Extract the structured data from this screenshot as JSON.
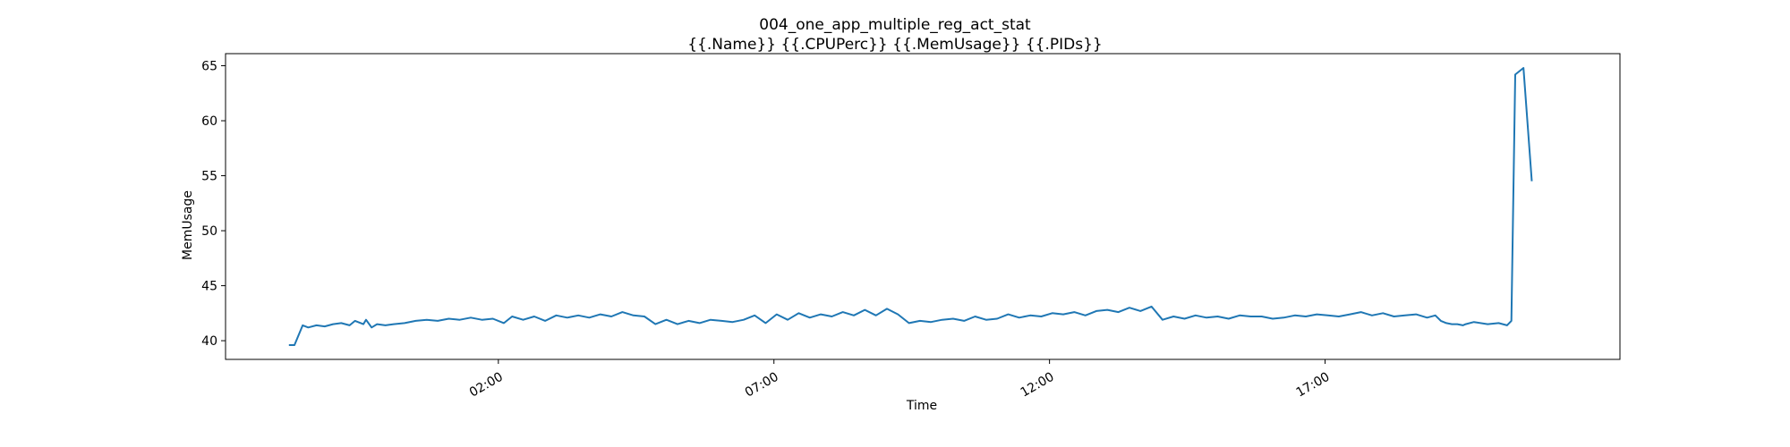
{
  "chart_data": {
    "type": "line",
    "title": "004_one_app_multiple_reg_act_stat",
    "subtitle": "{{.Name}} {{.CPUPerc}} {{.MemUsage}}  {{.PIDs}}",
    "xlabel": "Time",
    "ylabel": "MemUsage",
    "x_unit": "hour of day",
    "xlim": [
      -2.95,
      22.35
    ],
    "ylim": [
      38.3,
      66.1
    ],
    "x_ticks": [
      2,
      7,
      12,
      17
    ],
    "x_tick_labels": [
      "02:00",
      "07:00",
      "12:00",
      "17:00"
    ],
    "y_ticks": [
      40,
      45,
      50,
      55,
      60,
      65
    ],
    "y_tick_labels": [
      "40",
      "45",
      "50",
      "55",
      "60",
      "65"
    ],
    "grid": false,
    "series": [
      {
        "color": "#1f77b4",
        "x": [
          -1.8,
          -1.7,
          -1.55,
          -1.45,
          -1.3,
          -1.15,
          -1.0,
          -0.85,
          -0.7,
          -0.6,
          -0.45,
          -0.4,
          -0.3,
          -0.2,
          -0.05,
          0.1,
          0.3,
          0.5,
          0.7,
          0.9,
          1.1,
          1.3,
          1.5,
          1.7,
          1.9,
          2.1,
          2.25,
          2.45,
          2.65,
          2.85,
          3.05,
          3.25,
          3.45,
          3.65,
          3.85,
          4.05,
          4.25,
          4.45,
          4.65,
          4.85,
          5.05,
          5.25,
          5.45,
          5.65,
          5.85,
          6.05,
          6.25,
          6.45,
          6.65,
          6.85,
          7.05,
          7.25,
          7.45,
          7.65,
          7.85,
          8.05,
          8.25,
          8.45,
          8.65,
          8.85,
          9.05,
          9.25,
          9.45,
          9.65,
          9.85,
          10.05,
          10.25,
          10.45,
          10.65,
          10.85,
          11.05,
          11.25,
          11.45,
          11.65,
          11.85,
          12.05,
          12.25,
          12.45,
          12.65,
          12.85,
          13.05,
          13.25,
          13.45,
          13.65,
          13.85,
          14.05,
          14.25,
          14.45,
          14.65,
          14.85,
          15.05,
          15.25,
          15.45,
          15.65,
          15.85,
          16.05,
          16.25,
          16.45,
          16.65,
          16.85,
          17.05,
          17.25,
          17.45,
          17.65,
          17.85,
          18.05,
          18.25,
          18.45,
          18.65,
          18.85,
          19.0,
          19.1,
          19.2,
          19.3,
          19.4,
          19.5
        ],
        "values": [
          39.6,
          39.6,
          41.4,
          41.2,
          41.4,
          41.3,
          41.5,
          41.6,
          41.4,
          41.8,
          41.5,
          41.9,
          41.2,
          41.5,
          41.4,
          41.5,
          41.6,
          41.8,
          41.9,
          41.8,
          42.0,
          41.9,
          42.1,
          41.9,
          42.0,
          41.6,
          42.2,
          41.9,
          42.2,
          41.8,
          42.3,
          42.1,
          42.3,
          42.1,
          42.4,
          42.2,
          42.6,
          42.3,
          42.2,
          41.5,
          41.9,
          41.5,
          41.8,
          41.6,
          41.9,
          41.8,
          41.7,
          41.9,
          42.3,
          41.6,
          42.4,
          41.9,
          42.5,
          42.1,
          42.4,
          42.2,
          42.6,
          42.3,
          42.8,
          42.3,
          42.9,
          42.4,
          41.6,
          41.8,
          41.7,
          41.9,
          42.0,
          41.8,
          42.2,
          41.9,
          42.0,
          42.4,
          42.1,
          42.3,
          42.2,
          42.5,
          42.4,
          42.6,
          42.3,
          42.7,
          42.8,
          42.6,
          43.0,
          42.7,
          43.1,
          41.9,
          42.2,
          42.0,
          42.3,
          42.1,
          42.2,
          42.0,
          42.3,
          42.2,
          42.2,
          42.0,
          42.1,
          42.3,
          42.2,
          42.4,
          42.3,
          42.2,
          42.4,
          42.6,
          42.3,
          42.5,
          42.2,
          42.3,
          42.4,
          42.1,
          42.3,
          41.8,
          41.6,
          41.5,
          41.5,
          41.4
        ],
        "tail_x": [
          19.55,
          19.7,
          19.95,
          20.15,
          20.3,
          20.38,
          20.45,
          20.6,
          20.75
        ],
        "tail_values": [
          41.5,
          41.7,
          41.5,
          41.6,
          41.4,
          41.8,
          64.2,
          64.8,
          54.5
        ]
      }
    ]
  }
}
